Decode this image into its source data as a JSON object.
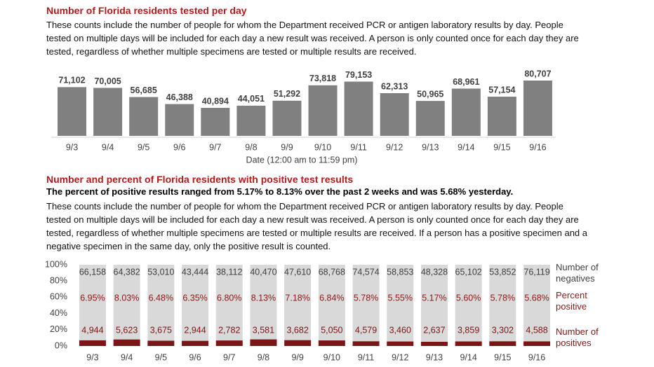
{
  "chart_data": [
    {
      "type": "bar",
      "title": "Number of Florida residents tested per day",
      "description": "These counts include the number of people for whom the Department received PCR or antigen laboratory results by day. People tested on multiple days will be included for each day a new result was received. A person is only counted once for each day they are tested, regardless of whether multiple specimens are tested or multiple results are received.",
      "xlabel": "Date (12:00 am to 11:59 pm)",
      "categories": [
        "9/3",
        "9/4",
        "9/5",
        "9/6",
        "9/7",
        "9/8",
        "9/9",
        "9/10",
        "9/11",
        "9/12",
        "9/13",
        "9/14",
        "9/15",
        "9/16"
      ],
      "values": [
        71102,
        70005,
        56685,
        46388,
        40894,
        44051,
        51292,
        73818,
        79153,
        62313,
        50965,
        68961,
        57154,
        80707
      ],
      "value_labels": [
        "71,102",
        "70,005",
        "56,685",
        "46,388",
        "40,894",
        "44,051",
        "51,292",
        "73,818",
        "79,153",
        "62,313",
        "50,965",
        "68,961",
        "57,154",
        "80,707"
      ],
      "color": "#808080"
    },
    {
      "type": "stacked_percent_bar",
      "title": "Number and percent of Florida residents with positive test results",
      "subtitle": "The percent of positive results ranged from 5.17% to 8.13% over the past 2 weeks and was 5.68% yesterday.",
      "description": "These counts include the number of people for whom the Department received PCR or antigen laboratory results by day. People tested on multiple days will be included for each day a new result was received. A person is only counted once for each day they are tested, regardless of whether multiple specimens are tested or multiple results are received. If a person has a positive specimen and a negative specimen in the same day, only the positive result is counted.",
      "categories": [
        "9/3",
        "9/4",
        "9/5",
        "9/6",
        "9/7",
        "9/8",
        "9/9",
        "9/10",
        "9/11",
        "9/12",
        "9/13",
        "9/14",
        "9/15",
        "9/16"
      ],
      "series": [
        {
          "name": "Number of positives",
          "color": "#7b1518",
          "values": [
            4944,
            5623,
            3675,
            2944,
            2782,
            3581,
            3682,
            5050,
            4579,
            3460,
            2637,
            3859,
            3302,
            4588
          ],
          "value_labels": [
            "4,944",
            "5,623",
            "3,675",
            "2,944",
            "2,782",
            "3,581",
            "3,682",
            "5,050",
            "4,579",
            "3,460",
            "2,637",
            "3,859",
            "3,302",
            "4,588"
          ]
        },
        {
          "name": "Number of negatives",
          "color": "#d9d9d9",
          "values": [
            66158,
            64382,
            53010,
            43444,
            38112,
            40470,
            47610,
            68768,
            74574,
            58853,
            48328,
            65102,
            53852,
            76119
          ],
          "value_labels": [
            "66,158",
            "64,382",
            "53,010",
            "43,444",
            "38,112",
            "40,470",
            "47,610",
            "68,768",
            "74,574",
            "58,853",
            "48,328",
            "65,102",
            "53,852",
            "76,119"
          ]
        }
      ],
      "percent_positive": {
        "name": "Percent positive",
        "color": "#8b1a1a",
        "values": [
          6.95,
          8.03,
          6.48,
          6.35,
          6.8,
          8.13,
          7.18,
          6.84,
          5.78,
          5.55,
          5.17,
          5.6,
          5.78,
          5.68
        ],
        "value_labels": [
          "6.95%",
          "8.03%",
          "6.48%",
          "6.35%",
          "6.80%",
          "8.13%",
          "7.18%",
          "6.84%",
          "5.78%",
          "5.55%",
          "5.17%",
          "5.60%",
          "5.78%",
          "5.68%"
        ]
      },
      "ylim": [
        0,
        100
      ],
      "yticks": [
        {
          "value": 0,
          "label": "0%"
        },
        {
          "value": 20,
          "label": "20%"
        },
        {
          "value": 40,
          "label": "40%"
        },
        {
          "value": 60,
          "label": "60%"
        },
        {
          "value": 80,
          "label": "80%"
        },
        {
          "value": 100,
          "label": "100%"
        }
      ]
    }
  ]
}
